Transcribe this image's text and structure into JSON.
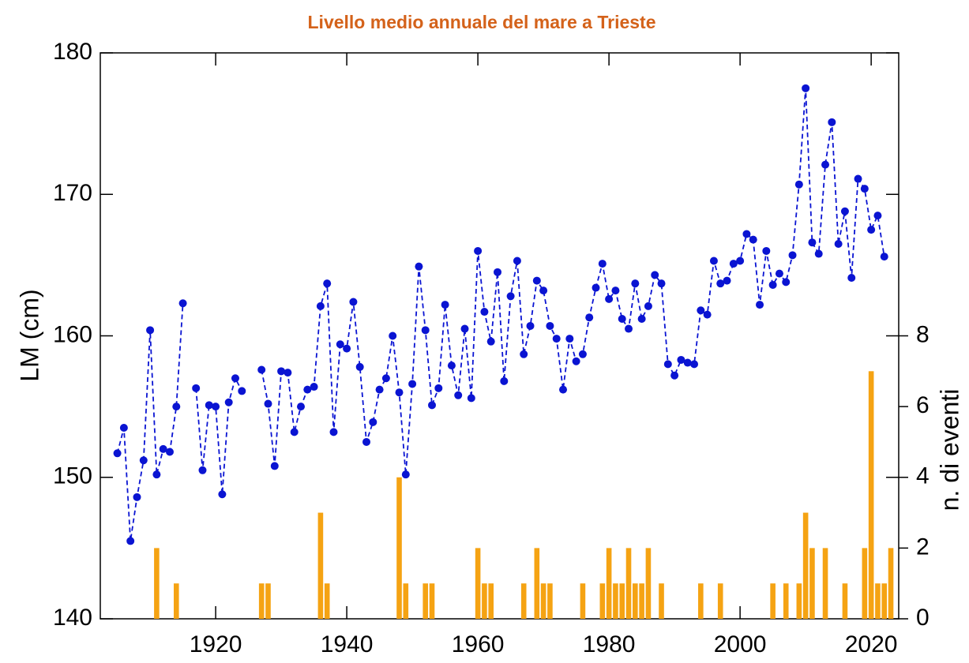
{
  "chart_data": {
    "type": "line",
    "title": "Livello medio annuale del mare a Trieste",
    "ylabel": "LM (cm)",
    "y2label": "n. di eventi",
    "x": [
      1905,
      1906,
      1907,
      1908,
      1909,
      1910,
      1911,
      1912,
      1913,
      1914,
      1915,
      1916,
      1917,
      1918,
      1919,
      1920,
      1921,
      1922,
      1923,
      1924,
      1925,
      1926,
      1927,
      1928,
      1929,
      1930,
      1931,
      1932,
      1933,
      1934,
      1935,
      1936,
      1937,
      1938,
      1939,
      1940,
      1941,
      1942,
      1943,
      1944,
      1945,
      1946,
      1947,
      1948,
      1949,
      1950,
      1951,
      1952,
      1953,
      1954,
      1955,
      1956,
      1957,
      1958,
      1959,
      1960,
      1961,
      1962,
      1963,
      1964,
      1965,
      1966,
      1967,
      1968,
      1969,
      1970,
      1971,
      1972,
      1973,
      1974,
      1975,
      1976,
      1977,
      1978,
      1979,
      1980,
      1981,
      1982,
      1983,
      1984,
      1985,
      1986,
      1987,
      1988,
      1989,
      1990,
      1991,
      1992,
      1993,
      1994,
      1995,
      1996,
      1997,
      1998,
      1999,
      2000,
      2001,
      2002,
      2003,
      2004,
      2005,
      2006,
      2007,
      2008,
      2009,
      2010,
      2011,
      2012,
      2013,
      2014,
      2015,
      2016,
      2017,
      2018,
      2019,
      2020,
      2021,
      2022
    ],
    "values": [
      151.7,
      153.5,
      145.5,
      148.6,
      151.2,
      160.4,
      150.2,
      152.0,
      151.8,
      155.0,
      162.3,
      null,
      156.3,
      150.5,
      155.1,
      155.0,
      148.8,
      155.3,
      157.0,
      156.1,
      null,
      null,
      157.6,
      155.2,
      150.8,
      157.5,
      157.4,
      153.2,
      155.0,
      156.2,
      156.4,
      162.1,
      163.7,
      153.2,
      159.4,
      159.1,
      162.4,
      157.8,
      152.5,
      153.9,
      156.2,
      157.0,
      160.0,
      156.0,
      150.2,
      156.6,
      164.9,
      160.4,
      155.1,
      156.3,
      162.2,
      157.9,
      155.8,
      160.5,
      155.6,
      166.0,
      161.7,
      159.6,
      164.5,
      156.8,
      162.8,
      165.3,
      158.7,
      160.7,
      163.9,
      163.2,
      160.7,
      159.8,
      156.2,
      159.8,
      158.2,
      158.7,
      161.3,
      163.4,
      165.1,
      162.6,
      163.2,
      161.2,
      160.5,
      163.7,
      161.2,
      162.1,
      164.3,
      163.7,
      158.0,
      157.2,
      158.3,
      158.1,
      158.0,
      161.8,
      161.5,
      165.3,
      163.7,
      163.9,
      165.1,
      165.3,
      167.2,
      166.8,
      162.2,
      166.0,
      163.6,
      164.4,
      163.8,
      165.7,
      170.7,
      177.5,
      166.6,
      165.8,
      172.1,
      175.1,
      166.5,
      168.8,
      164.1,
      171.1,
      170.4,
      167.5,
      168.5,
      165.6
    ],
    "color": "#0a14d2",
    "bars": {
      "type": "bar",
      "axis": "y2",
      "color": "#f5a313",
      "x": [
        1911,
        1914,
        1927,
        1928,
        1936,
        1937,
        1948,
        1949,
        1952,
        1953,
        1960,
        1961,
        1962,
        1967,
        1969,
        1970,
        1971,
        1976,
        1979,
        1980,
        1981,
        1982,
        1983,
        1984,
        1985,
        1986,
        1988,
        1994,
        1997,
        2005,
        2007,
        2009,
        2010,
        2011,
        2013,
        2016,
        2019,
        2020,
        2021,
        2022,
        2023
      ],
      "values": [
        2,
        1,
        1,
        1,
        3,
        1,
        4,
        1,
        1,
        1,
        2,
        1,
        1,
        1,
        2,
        1,
        1,
        1,
        1,
        2,
        1,
        1,
        2,
        1,
        1,
        2,
        1,
        1,
        1,
        1,
        1,
        1,
        3,
        2,
        2,
        1,
        2,
        7,
        1,
        1,
        2
      ]
    },
    "xlim": [
      1902.4,
      2024.2
    ],
    "xticks": [
      1920,
      1940,
      1960,
      1980,
      2000,
      2020
    ],
    "ylim": [
      140,
      180
    ],
    "yticks": [
      140,
      150,
      160,
      170,
      180
    ],
    "y2lim": [
      0,
      16
    ],
    "y2ticks": [
      0,
      2,
      4,
      6,
      8
    ],
    "grid": false
  }
}
